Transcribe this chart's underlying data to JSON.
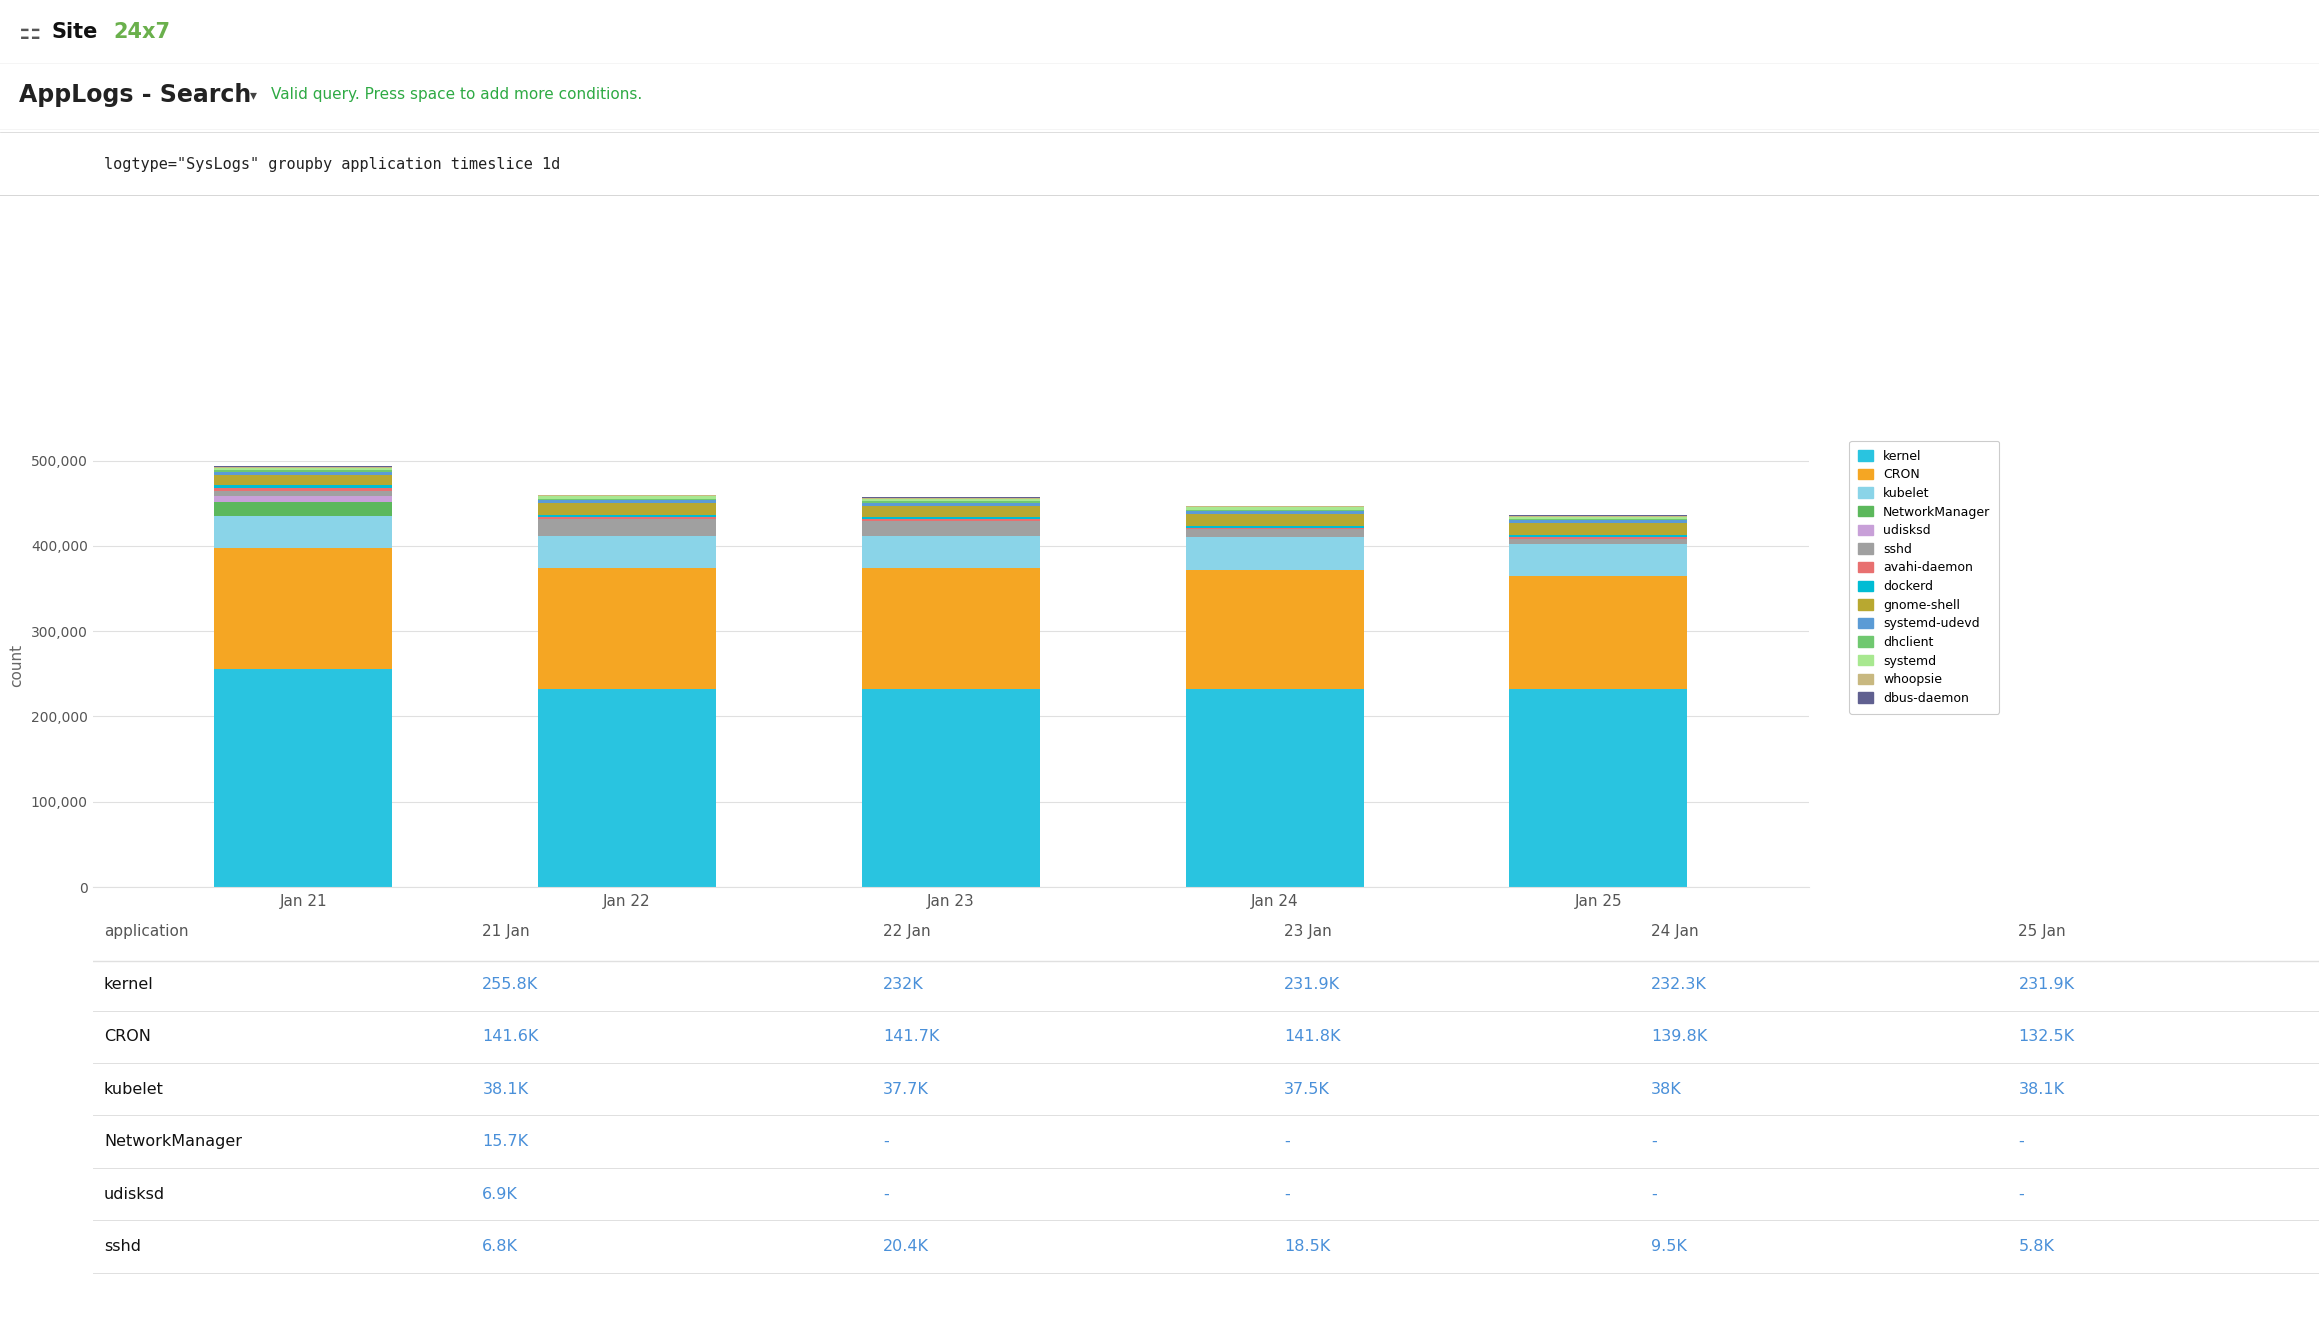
{
  "dates": [
    "Jan 21",
    "Jan 22",
    "Jan 23",
    "Jan 24",
    "Jan 25"
  ],
  "categories": [
    "kernel",
    "CRON",
    "kubelet",
    "NetworkManager",
    "udisksd",
    "sshd",
    "avahi-daemon",
    "dockerd",
    "gnome-shell",
    "systemd-udevd",
    "dhclient",
    "systemd",
    "whoopsie",
    "dbus-daemon"
  ],
  "colors": [
    "#29c4e0",
    "#f5a623",
    "#8ad4e8",
    "#5cb85c",
    "#c8a0d8",
    "#a0a0a0",
    "#e87070",
    "#00bcd4",
    "#b8a830",
    "#5b9bd5",
    "#70c870",
    "#a8e890",
    "#c8b880",
    "#606090"
  ],
  "values": {
    "kernel": [
      255800,
      232000,
      231900,
      232300,
      231900
    ],
    "CRON": [
      141600,
      141700,
      141800,
      139800,
      132500
    ],
    "kubelet": [
      38100,
      37700,
      37500,
      38000,
      38100
    ],
    "NetworkManager": [
      15700,
      0,
      0,
      0,
      0
    ],
    "udisksd": [
      6900,
      0,
      0,
      0,
      0
    ],
    "sshd": [
      6800,
      20400,
      18500,
      9500,
      5800
    ],
    "avahi-daemon": [
      3500,
      2000,
      2000,
      1800,
      1800
    ],
    "dockerd": [
      2500,
      2500,
      2500,
      2500,
      2500
    ],
    "gnome-shell": [
      12000,
      14000,
      13000,
      14000,
      14000
    ],
    "systemd-udevd": [
      4000,
      3500,
      3500,
      3200,
      3200
    ],
    "dhclient": [
      1500,
      1500,
      1500,
      1500,
      1500
    ],
    "systemd": [
      3000,
      2800,
      2800,
      2700,
      2700
    ],
    "whoopsie": [
      1200,
      1100,
      1100,
      1000,
      1000
    ],
    "dbus-daemon": [
      800,
      700,
      700,
      700,
      700
    ]
  },
  "ylabel": "count",
  "ylim": [
    0,
    520000
  ],
  "yticks": [
    0,
    100000,
    200000,
    300000,
    400000,
    500000
  ],
  "ytick_labels": [
    "0",
    "100,000",
    "200,000",
    "300,000",
    "400,000",
    "500,000"
  ],
  "table_headers": [
    "application",
    "21 Jan",
    "22 Jan",
    "23 Jan",
    "24 Jan",
    "25 Jan"
  ],
  "table_rows": [
    [
      "kernel",
      "255.8K",
      "232K",
      "231.9K",
      "232.3K",
      "231.9K"
    ],
    [
      "CRON",
      "141.6K",
      "141.7K",
      "141.8K",
      "139.8K",
      "132.5K"
    ],
    [
      "kubelet",
      "38.1K",
      "37.7K",
      "37.5K",
      "38K",
      "38.1K"
    ],
    [
      "NetworkManager",
      "15.7K",
      "-",
      "-",
      "-",
      "-"
    ],
    [
      "udisksd",
      "6.9K",
      "-",
      "-",
      "-",
      "-"
    ],
    [
      "sshd",
      "6.8K",
      "20.4K",
      "18.5K",
      "9.5K",
      "5.8K"
    ]
  ],
  "bg_color": "#ffffff",
  "chart_bg": "#ffffff",
  "grid_color": "#e0e0e0",
  "bar_width": 0.55,
  "logo_text_site": "Site",
  "logo_text_247": "24x7",
  "title_text": "AppLogs - Search",
  "subtitle_text": "Valid query. Press space to add more conditions.",
  "query_text": "logtype=\"SysLogs\" groupby application timeslice 1d",
  "ui_colors": {
    "header_bg": "#f5f5f5",
    "border": "#d0d0d0",
    "text_dark": "#222222",
    "text_blue": "#4a90d9",
    "text_green": "#2eaa44",
    "logo_green": "#6ab04c",
    "search_bar_bg": "#ffffff",
    "toolbar_bg": "#fafafa",
    "logo_black": "#111111"
  }
}
